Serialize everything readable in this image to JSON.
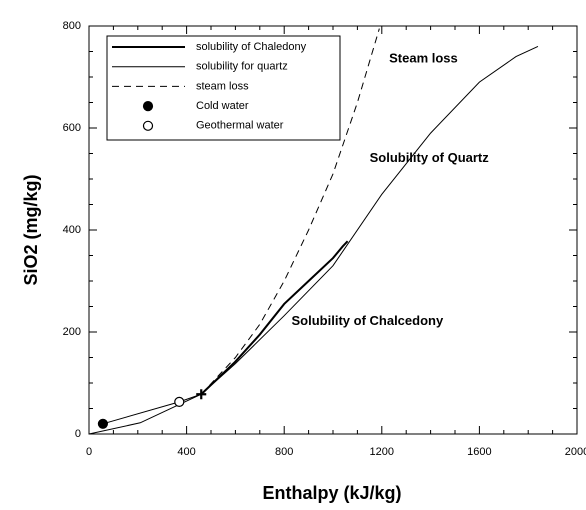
{
  "chart_data": {
    "type": "line",
    "x_label": "Enthalpy  (kJ/kg)",
    "y_label": "SiO2 (mg/kg)",
    "xlim": [
      0,
      2000
    ],
    "ylim": [
      0,
      800
    ],
    "xticks": [
      0,
      400,
      800,
      1200,
      1600,
      2000
    ],
    "yticks": [
      0,
      200,
      400,
      600,
      800
    ],
    "xminorticks": [
      100,
      200,
      300,
      500,
      600,
      700,
      900,
      1000,
      1100,
      1300,
      1400,
      1500,
      1700,
      1800,
      1900
    ],
    "yminorticks": [
      50,
      100,
      150,
      250,
      300,
      350,
      450,
      500,
      550,
      650,
      700,
      750
    ],
    "series": [
      {
        "name": "solubility of Chaledony",
        "style": "thick",
        "color": "#000000",
        "x": [
          460,
          600,
          700,
          800,
          900,
          1000,
          1040,
          1060
        ],
        "values": [
          78,
          142,
          195,
          255,
          300,
          345,
          368,
          378
        ]
      },
      {
        "name": "solubility for quartz",
        "style": "thin",
        "color": "#000000",
        "x": [
          0,
          210,
          460,
          600,
          800,
          1000,
          1200,
          1400,
          1600,
          1750,
          1840
        ],
        "values": [
          0,
          22,
          78,
          138,
          232,
          330,
          470,
          590,
          690,
          740,
          760
        ]
      },
      {
        "name": "steam loss",
        "style": "dashed",
        "color": "#000000",
        "x": [
          460,
          600,
          700,
          800,
          900,
          1000,
          1100,
          1190
        ],
        "values": [
          78,
          150,
          215,
          300,
          400,
          510,
          650,
          795
        ]
      },
      {
        "name": "Cold water",
        "style": "filled-point",
        "color": "#000000",
        "x": [
          57
        ],
        "values": [
          20
        ]
      },
      {
        "name": "Geothermal water",
        "style": "open-point",
        "color": "#000000",
        "x": [
          370
        ],
        "values": [
          63
        ]
      }
    ],
    "mixing_line": {
      "x": [
        57,
        370,
        460
      ],
      "values": [
        20,
        63,
        78
      ]
    },
    "plus_marker": {
      "x": 460,
      "y": 78
    },
    "annotations": [
      {
        "text": "Steam loss",
        "x": 1230,
        "y": 735
      },
      {
        "text": "Solubility of Quartz",
        "x": 1150,
        "y": 540
      },
      {
        "text": "Solubility of Chalcedony",
        "x": 830,
        "y": 220
      }
    ]
  }
}
